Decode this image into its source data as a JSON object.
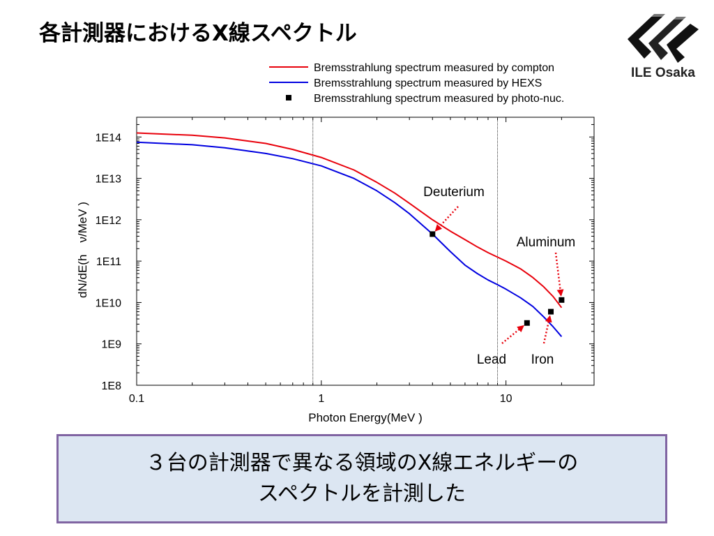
{
  "slide": {
    "title": "各計測器におけるX線スペクトル",
    "logo_text": "ILE Osaka",
    "caption_lines": [
      "３台の計測器で異なる領域のX線エネルギーの",
      "スペクトルを計測した"
    ]
  },
  "chart_data": {
    "type": "line",
    "xlabel": "Photon Energy(MeV )",
    "ylabel": "dN/dE(h　ν/MeV )",
    "x_scale": "log",
    "y_scale": "log",
    "xlim": [
      0.1,
      30
    ],
    "ylim": [
      100000000.0,
      300000000000000.0
    ],
    "x_ticks": [
      {
        "value": 0.1,
        "label": "0.1"
      },
      {
        "value": 1,
        "label": "1"
      },
      {
        "value": 10,
        "label": "10"
      }
    ],
    "y_ticks": [
      {
        "value": 100000000.0,
        "label": "1E8"
      },
      {
        "value": 1000000000.0,
        "label": "1E9"
      },
      {
        "value": 10000000000.0,
        "label": "1E10"
      },
      {
        "value": 100000000000.0,
        "label": "1E11"
      },
      {
        "value": 1000000000000.0,
        "label": "1E12"
      },
      {
        "value": 10000000000000.0,
        "label": "1E13"
      },
      {
        "value": 100000000000000.0,
        "label": "1E14"
      }
    ],
    "vertical_lines": [
      0.9,
      9.0
    ],
    "legend_position": "top",
    "series": [
      {
        "name": "Bremsstrahlung spectrum measured by compton",
        "kind": "line",
        "color": "#e8000b",
        "points": [
          [
            0.1,
            125000000000000.0
          ],
          [
            0.2,
            110000000000000.0
          ],
          [
            0.3,
            95000000000000.0
          ],
          [
            0.5,
            70000000000000.0
          ],
          [
            0.7,
            50000000000000.0
          ],
          [
            1.0,
            32000000000000.0
          ],
          [
            1.5,
            16000000000000.0
          ],
          [
            2.0,
            8000000000000.0
          ],
          [
            2.5,
            4400000000000.0
          ],
          [
            3.0,
            2500000000000.0
          ],
          [
            4.0,
            1000000000000.0
          ],
          [
            5.0,
            530000000000.0
          ],
          [
            6.0,
            330000000000.0
          ],
          [
            7.0,
            220000000000.0
          ],
          [
            8.0,
            160000000000.0
          ],
          [
            9.0,
            125000000000.0
          ],
          [
            10.0,
            100000000000.0
          ],
          [
            12.0,
            65000000000.0
          ],
          [
            14.0,
            40000000000.0
          ],
          [
            16.0,
            24000000000.0
          ],
          [
            18.0,
            14000000000.0
          ],
          [
            20.0,
            7500000000.0
          ]
        ]
      },
      {
        "name": "Bremsstrahlung spectrum measured by HEXS",
        "kind": "line",
        "color": "#0000e0",
        "points": [
          [
            0.1,
            75000000000000.0
          ],
          [
            0.2,
            65000000000000.0
          ],
          [
            0.3,
            55000000000000.0
          ],
          [
            0.5,
            40000000000000.0
          ],
          [
            0.7,
            30000000000000.0
          ],
          [
            1.0,
            20000000000000.0
          ],
          [
            1.5,
            10000000000000.0
          ],
          [
            2.0,
            5000000000000.0
          ],
          [
            2.5,
            2600000000000.0
          ],
          [
            3.0,
            1400000000000.0
          ],
          [
            4.0,
            450000000000.0
          ],
          [
            5.0,
            170000000000.0
          ],
          [
            6.0,
            80000000000.0
          ],
          [
            7.0,
            50000000000.0
          ],
          [
            8.0,
            35000000000.0
          ],
          [
            9.0,
            27000000000.0
          ],
          [
            10.0,
            21000000000.0
          ],
          [
            12.0,
            13000000000.0
          ],
          [
            14.0,
            8000000000.0
          ],
          [
            16.0,
            4500000000.0
          ],
          [
            18.0,
            2600000000.0
          ],
          [
            20.0,
            1500000000.0
          ]
        ]
      },
      {
        "name": "Bremsstrahlung spectrum measured by photo-nuc.",
        "kind": "scatter",
        "color": "#000000",
        "points": [
          [
            4.0,
            450000000000.0
          ],
          [
            13.0,
            3200000000.0
          ],
          [
            17.5,
            6000000000.0
          ],
          [
            20.0,
            11500000000.0
          ]
        ]
      }
    ],
    "annotations": [
      {
        "text": "Deuterium",
        "x": 4.0,
        "y": 450000000000.0
      },
      {
        "text": "Aluminum",
        "x": 20.0,
        "y": 11500000000.0
      },
      {
        "text": "Lead",
        "x": 13.0,
        "y": 3200000000.0
      },
      {
        "text": "Iron",
        "x": 17.5,
        "y": 6000000000.0
      }
    ]
  }
}
